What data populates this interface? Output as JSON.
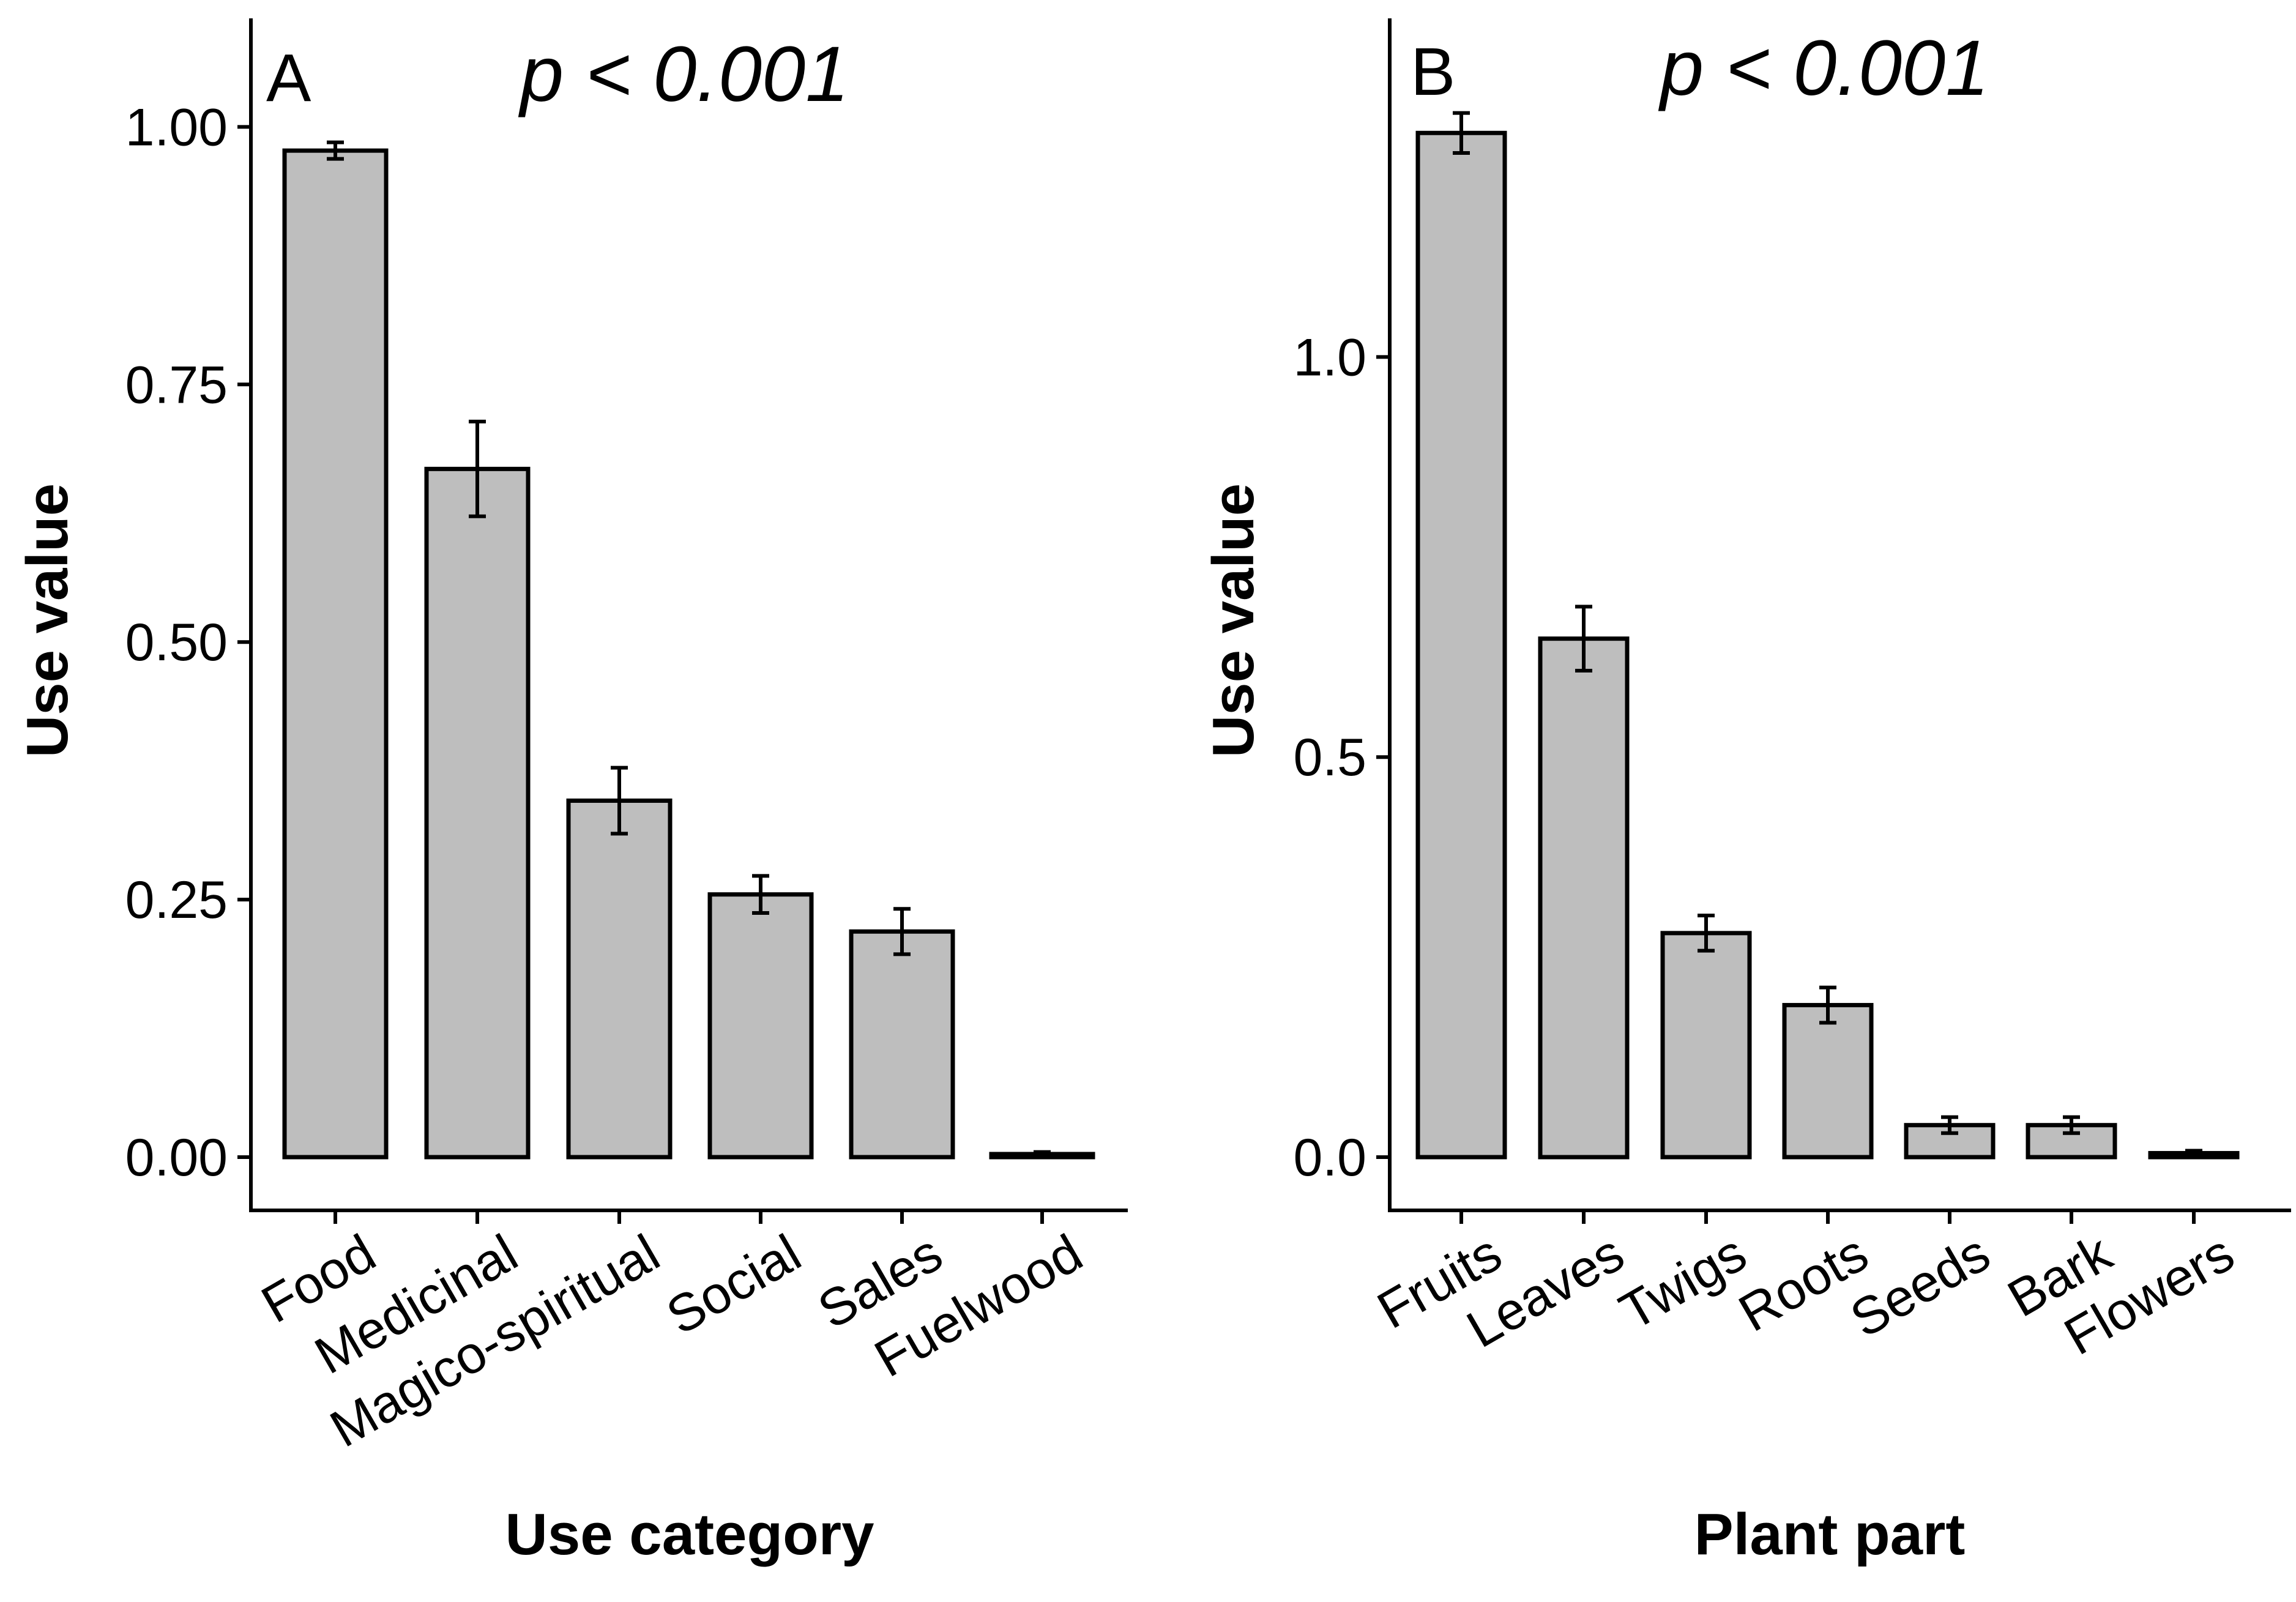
{
  "chart_data": [
    {
      "type": "bar",
      "panel_label": "A",
      "annotation": "p < 0.001",
      "title": "",
      "xlabel": "Use category",
      "ylabel": "Use value",
      "ylim": [
        -0.05,
        1.1
      ],
      "yticks": [
        0.0,
        0.25,
        0.5,
        0.75,
        1.0
      ],
      "ytick_labels": [
        "0.00",
        "0.25",
        "0.50",
        "0.75",
        "1.00"
      ],
      "categories": [
        "Food",
        "Medicinal",
        "Magico-spiritual",
        "Social",
        "Sales",
        "Fuelwood"
      ],
      "values": [
        0.977,
        0.668,
        0.346,
        0.255,
        0.219,
        0.003
      ],
      "error_low": [
        0.969,
        0.622,
        0.314,
        0.237,
        0.197,
        0.001
      ],
      "error_high": [
        0.985,
        0.714,
        0.378,
        0.273,
        0.241,
        0.005
      ]
    },
    {
      "type": "bar",
      "panel_label": "B",
      "annotation": "p < 0.001",
      "title": "",
      "xlabel": "Plant part",
      "ylabel": "Use value",
      "ylim": [
        -0.07,
        1.42
      ],
      "yticks": [
        0.0,
        0.5,
        1.0
      ],
      "ytick_labels": [
        "0.0",
        "0.5",
        "1.0"
      ],
      "categories": [
        "Fruits",
        "Leaves",
        "Twigs",
        "Roots",
        "Seeds",
        "Bark",
        "Flowers"
      ],
      "values": [
        1.28,
        0.648,
        0.28,
        0.19,
        0.04,
        0.04,
        0.005
      ],
      "error_low": [
        1.255,
        0.608,
        0.258,
        0.168,
        0.03,
        0.03,
        0.002
      ],
      "error_high": [
        1.305,
        0.688,
        0.302,
        0.212,
        0.05,
        0.05,
        0.008
      ]
    }
  ]
}
